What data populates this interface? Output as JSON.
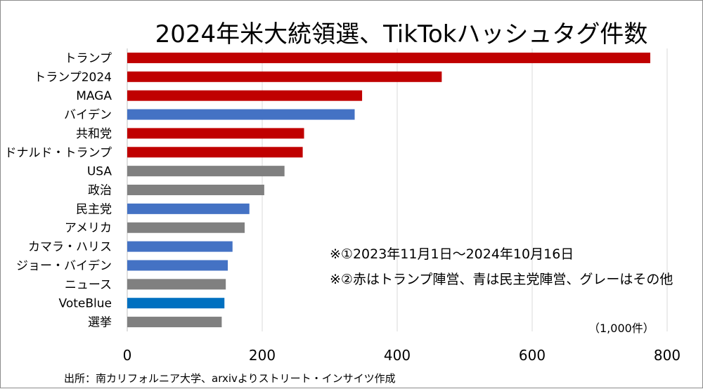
{
  "chart_data": {
    "type": "bar",
    "orientation": "horizontal",
    "title": "2024年米大統領選、TikTokハッシュタグ件数",
    "categories": [
      "トランプ",
      "トランプ2024",
      "MAGA",
      "バイデン",
      "共和党",
      "ドナルド・トランプ",
      "USA",
      "政治",
      "民主党",
      "アメリカ",
      "カマラ・ハリス",
      "ジョー・バイデン",
      "ニュース",
      "VoteBlue",
      "選挙"
    ],
    "values": [
      775,
      466,
      348,
      337,
      262,
      260,
      233,
      203,
      181,
      174,
      156,
      149,
      146,
      144,
      140
    ],
    "camps": [
      "red",
      "red",
      "red",
      "blue",
      "red",
      "red",
      "gray",
      "gray",
      "blue",
      "gray",
      "blue",
      "blue",
      "gray",
      "blue2",
      "gray"
    ],
    "xlim": [
      0,
      800
    ],
    "xticks": [
      "0",
      "200",
      "400",
      "600",
      "800"
    ],
    "xlabel": "",
    "ylabel": "",
    "grid": "vertical"
  },
  "colors": {
    "red": "#c00000",
    "blue": "#4472c4",
    "blue2": "#0070c0",
    "gray": "#808080",
    "grid": "#d9d9d9"
  },
  "notes": {
    "note1": "※①2023年11月1日～2024年10月16日",
    "note2": "※②赤はトランプ陣営、青は民主党陣営、グレーはその他",
    "unit": "（1,000件）"
  },
  "source": "出所：南カリフォルニア大学、arxivよりストリート・インサイツ作成"
}
